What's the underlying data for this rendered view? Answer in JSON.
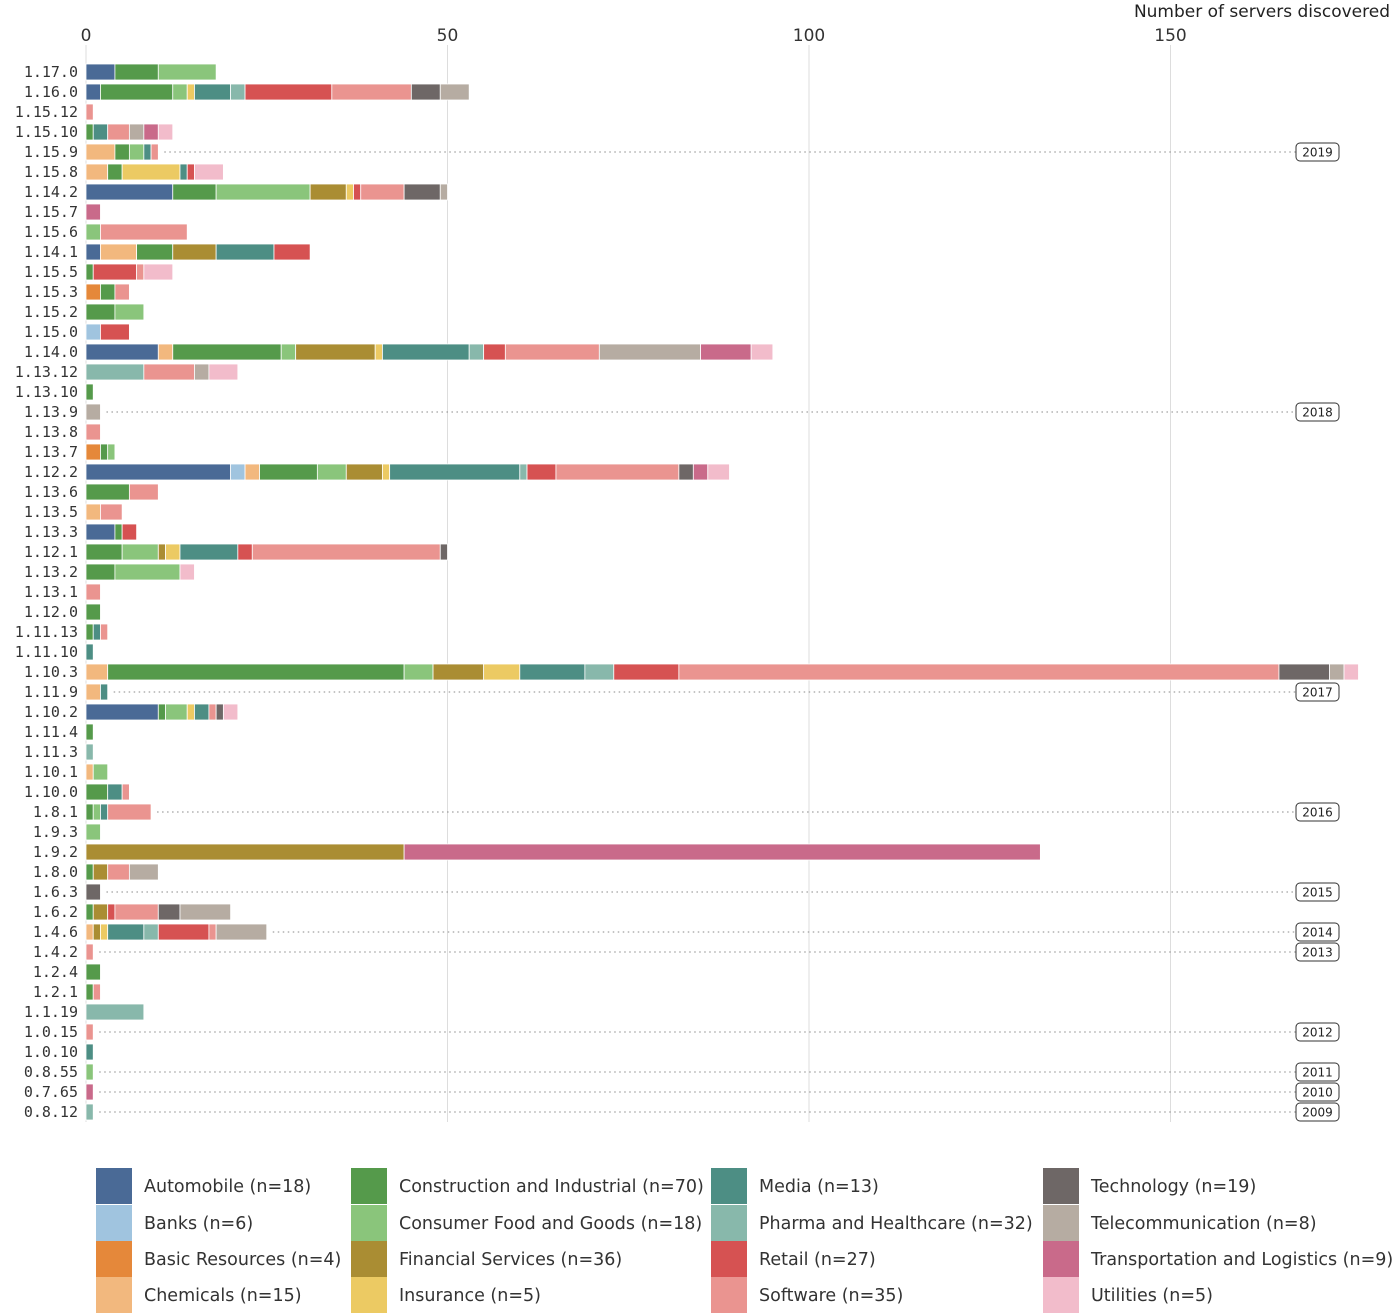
{
  "chart_data": {
    "type": "bar",
    "orientation": "horizontal",
    "stacked": true,
    "xlabel": "Number of servers discovered",
    "x_ticks": [
      0,
      50,
      100,
      150
    ],
    "xlim": [
      0,
      176
    ],
    "grid": "vertical",
    "legend_position": "bottom",
    "categories": [
      "1.17.0",
      "1.16.0",
      "1.15.12",
      "1.15.10",
      "1.15.9",
      "1.15.8",
      "1.14.2",
      "1.15.7",
      "1.15.6",
      "1.14.1",
      "1.15.5",
      "1.15.3",
      "1.15.2",
      "1.15.0",
      "1.14.0",
      "1.13.12",
      "1.13.10",
      "1.13.9",
      "1.13.8",
      "1.13.7",
      "1.12.2",
      "1.13.6",
      "1.13.5",
      "1.13.3",
      "1.12.1",
      "1.13.2",
      "1.13.1",
      "1.12.0",
      "1.11.13",
      "1.11.10",
      "1.10.3",
      "1.11.9",
      "1.10.2",
      "1.11.4",
      "1.11.3",
      "1.10.1",
      "1.10.0",
      "1.8.1",
      "1.9.3",
      "1.9.2",
      "1.8.0",
      "1.6.3",
      "1.6.2",
      "1.4.6",
      "1.4.2",
      "1.2.4",
      "1.2.1",
      "1.1.19",
      "1.0.15",
      "1.0.10",
      "0.8.55",
      "0.7.65",
      "0.8.12"
    ],
    "series": [
      {
        "name": "Automobile (n=18)",
        "color": "#4a6a96",
        "values": [
          4,
          2,
          0,
          0,
          0,
          0,
          12,
          0,
          0,
          2,
          0,
          0,
          0,
          0,
          10,
          0,
          0,
          0,
          0,
          0,
          20,
          0,
          0,
          4,
          0,
          0,
          0,
          0,
          0,
          0,
          0,
          0,
          10,
          0,
          0,
          0,
          0,
          0,
          0,
          0,
          0,
          0,
          0,
          0,
          0,
          0,
          0,
          0,
          0,
          0,
          0,
          0,
          0
        ]
      },
      {
        "name": "Banks (n=6)",
        "color": "#a0c4df",
        "values": [
          0,
          0,
          0,
          0,
          0,
          0,
          0,
          0,
          0,
          0,
          0,
          0,
          0,
          2,
          0,
          0,
          0,
          0,
          0,
          0,
          2,
          0,
          0,
          0,
          0,
          0,
          0,
          0,
          0,
          0,
          0,
          0,
          0,
          0,
          0,
          0,
          0,
          0,
          0,
          0,
          0,
          0,
          0,
          0,
          0,
          0,
          0,
          0,
          0,
          0,
          0,
          0,
          0
        ]
      },
      {
        "name": "Basic Resources (n=4)",
        "color": "#e5883a",
        "values": [
          0,
          0,
          0,
          0,
          0,
          0,
          0,
          0,
          0,
          0,
          0,
          2,
          0,
          0,
          0,
          0,
          0,
          0,
          0,
          2,
          0,
          0,
          0,
          0,
          0,
          0,
          0,
          0,
          0,
          0,
          0,
          0,
          0,
          0,
          0,
          0,
          0,
          0,
          0,
          0,
          0,
          0,
          0,
          0,
          0,
          0,
          0,
          0,
          0,
          0,
          0,
          0,
          0
        ]
      },
      {
        "name": "Chemicals (n=15)",
        "color": "#f2b87e",
        "values": [
          0,
          0,
          0,
          0,
          4,
          3,
          0,
          0,
          0,
          5,
          0,
          0,
          0,
          0,
          2,
          0,
          0,
          0,
          0,
          0,
          2,
          0,
          2,
          0,
          0,
          0,
          0,
          0,
          0,
          0,
          3,
          2,
          0,
          0,
          0,
          1,
          0,
          0,
          0,
          0,
          0,
          0,
          0,
          1,
          0,
          0,
          0,
          0,
          0,
          0,
          0,
          0,
          0
        ]
      },
      {
        "name": "Construction and Industrial (n=70)",
        "color": "#559a4b",
        "values": [
          6,
          10,
          0,
          1,
          2,
          2,
          6,
          0,
          0,
          5,
          1,
          2,
          4,
          0,
          15,
          0,
          1,
          0,
          0,
          1,
          8,
          6,
          0,
          1,
          5,
          4,
          0,
          2,
          1,
          0,
          41,
          0,
          1,
          1,
          0,
          0,
          3,
          1,
          0,
          0,
          1,
          0,
          1,
          0,
          0,
          2,
          1,
          0,
          0,
          0,
          0,
          0,
          0
        ]
      },
      {
        "name": "Consumer Food and Goods (n=18)",
        "color": "#8ac57b",
        "values": [
          8,
          2,
          0,
          0,
          2,
          0,
          13,
          0,
          2,
          0,
          0,
          0,
          4,
          0,
          2,
          0,
          0,
          0,
          0,
          1,
          4,
          0,
          0,
          0,
          5,
          9,
          0,
          0,
          0,
          0,
          4,
          0,
          3,
          0,
          0,
          2,
          0,
          1,
          2,
          0,
          0,
          0,
          0,
          0,
          0,
          0,
          0,
          0,
          0,
          0,
          1,
          0,
          0
        ]
      },
      {
        "name": "Financial Services (n=36)",
        "color": "#aa8d33",
        "values": [
          0,
          0,
          0,
          0,
          0,
          0,
          5,
          0,
          0,
          6,
          0,
          0,
          0,
          0,
          11,
          0,
          0,
          0,
          0,
          0,
          5,
          0,
          0,
          0,
          1,
          0,
          0,
          0,
          0,
          0,
          7,
          0,
          0,
          0,
          0,
          0,
          0,
          0,
          0,
          44,
          2,
          0,
          2,
          1,
          0,
          0,
          0,
          0,
          0,
          0,
          0,
          0,
          0
        ]
      },
      {
        "name": "Insurance (n=5)",
        "color": "#ecca63",
        "values": [
          0,
          1,
          0,
          0,
          0,
          8,
          1,
          0,
          0,
          0,
          0,
          0,
          0,
          0,
          1,
          0,
          0,
          0,
          0,
          0,
          1,
          0,
          0,
          0,
          2,
          0,
          0,
          0,
          0,
          0,
          5,
          0,
          1,
          0,
          0,
          0,
          0,
          0,
          0,
          0,
          0,
          0,
          0,
          1,
          0,
          0,
          0,
          0,
          0,
          0,
          0,
          0,
          0
        ]
      },
      {
        "name": "Media (n=13)",
        "color": "#4d8e84",
        "values": [
          0,
          5,
          0,
          2,
          1,
          1,
          0,
          0,
          0,
          8,
          0,
          0,
          0,
          0,
          12,
          0,
          0,
          0,
          0,
          0,
          18,
          0,
          0,
          0,
          8,
          0,
          0,
          0,
          1,
          1,
          9,
          1,
          2,
          0,
          0,
          0,
          2,
          1,
          0,
          0,
          0,
          0,
          0,
          5,
          0,
          0,
          0,
          0,
          0,
          1,
          0,
          0,
          0
        ]
      },
      {
        "name": "Pharma and Healthcare (n=32)",
        "color": "#88b8ab",
        "values": [
          0,
          2,
          0,
          0,
          0,
          0,
          0,
          0,
          0,
          0,
          0,
          0,
          0,
          0,
          2,
          8,
          0,
          0,
          0,
          0,
          1,
          0,
          0,
          0,
          0,
          0,
          0,
          0,
          0,
          0,
          4,
          0,
          0,
          0,
          1,
          0,
          0,
          0,
          0,
          0,
          0,
          0,
          0,
          2,
          0,
          0,
          0,
          8,
          0,
          0,
          0,
          0,
          1
        ]
      },
      {
        "name": "Retail (n=27)",
        "color": "#d65252",
        "values": [
          0,
          12,
          0,
          0,
          0,
          1,
          1,
          0,
          0,
          5,
          6,
          0,
          0,
          4,
          3,
          0,
          0,
          0,
          0,
          0,
          4,
          0,
          0,
          2,
          2,
          0,
          0,
          0,
          0,
          0,
          9,
          0,
          0,
          0,
          0,
          0,
          0,
          0,
          0,
          0,
          0,
          0,
          1,
          7,
          0,
          0,
          0,
          0,
          0,
          0,
          0,
          0,
          0
        ]
      },
      {
        "name": "Software (n=35)",
        "color": "#ea9490",
        "values": [
          0,
          11,
          1,
          3,
          1,
          0,
          6,
          0,
          12,
          0,
          1,
          2,
          0,
          0,
          13,
          7,
          0,
          0,
          2,
          0,
          17,
          4,
          3,
          0,
          26,
          0,
          2,
          0,
          1,
          0,
          83,
          0,
          1,
          0,
          0,
          0,
          1,
          6,
          0,
          0,
          3,
          0,
          6,
          1,
          1,
          0,
          1,
          0,
          1,
          0,
          0,
          0,
          0
        ]
      },
      {
        "name": "Technology (n=19)",
        "color": "#6e6766",
        "values": [
          0,
          4,
          0,
          0,
          0,
          0,
          5,
          0,
          0,
          0,
          0,
          0,
          0,
          0,
          0,
          0,
          0,
          0,
          0,
          0,
          2,
          0,
          0,
          0,
          1,
          0,
          0,
          0,
          0,
          0,
          7,
          0,
          1,
          0,
          0,
          0,
          0,
          0,
          0,
          0,
          0,
          2,
          3,
          0,
          0,
          0,
          0,
          0,
          0,
          0,
          0,
          0,
          0
        ]
      },
      {
        "name": "Telecommunication (n=8)",
        "color": "#b6aca2",
        "values": [
          0,
          4,
          0,
          2,
          0,
          0,
          1,
          0,
          0,
          0,
          0,
          0,
          0,
          0,
          14,
          2,
          0,
          2,
          0,
          0,
          0,
          0,
          0,
          0,
          0,
          0,
          0,
          0,
          0,
          0,
          2,
          0,
          0,
          0,
          0,
          0,
          0,
          0,
          0,
          0,
          4,
          0,
          7,
          7,
          0,
          0,
          0,
          0,
          0,
          0,
          0,
          0,
          0
        ]
      },
      {
        "name": "Transportation and Logistics (n=9)",
        "color": "#c96a8a",
        "values": [
          0,
          0,
          0,
          2,
          0,
          0,
          0,
          2,
          0,
          0,
          0,
          0,
          0,
          0,
          7,
          0,
          0,
          0,
          0,
          0,
          2,
          0,
          0,
          0,
          0,
          0,
          0,
          0,
          0,
          0,
          0,
          0,
          0,
          0,
          0,
          0,
          0,
          0,
          0,
          88,
          0,
          0,
          0,
          0,
          0,
          0,
          0,
          0,
          0,
          0,
          0,
          1,
          0
        ]
      },
      {
        "name": "Utilities (n=5)",
        "color": "#f2bccb",
        "values": [
          0,
          0,
          0,
          2,
          0,
          4,
          0,
          0,
          0,
          0,
          4,
          0,
          0,
          0,
          3,
          4,
          0,
          0,
          0,
          0,
          3,
          0,
          0,
          0,
          0,
          2,
          0,
          0,
          0,
          0,
          2,
          0,
          2,
          0,
          0,
          0,
          0,
          0,
          0,
          0,
          0,
          0,
          0,
          0,
          0,
          0,
          0,
          0,
          0,
          0,
          0,
          0,
          0
        ]
      }
    ],
    "year_annotations": [
      {
        "label": "2019",
        "category": "1.15.9"
      },
      {
        "label": "2018",
        "category": "1.13.9"
      },
      {
        "label": "2017",
        "category": "1.11.9"
      },
      {
        "label": "2016",
        "category": "1.8.1"
      },
      {
        "label": "2015",
        "category": "1.6.3"
      },
      {
        "label": "2014",
        "category": "1.4.6"
      },
      {
        "label": "2013",
        "category": "1.4.2"
      },
      {
        "label": "2012",
        "category": "1.0.15"
      },
      {
        "label": "2011",
        "category": "0.8.55"
      },
      {
        "label": "2010",
        "category": "0.7.65"
      },
      {
        "label": "2009",
        "category": "0.8.12"
      }
    ]
  }
}
